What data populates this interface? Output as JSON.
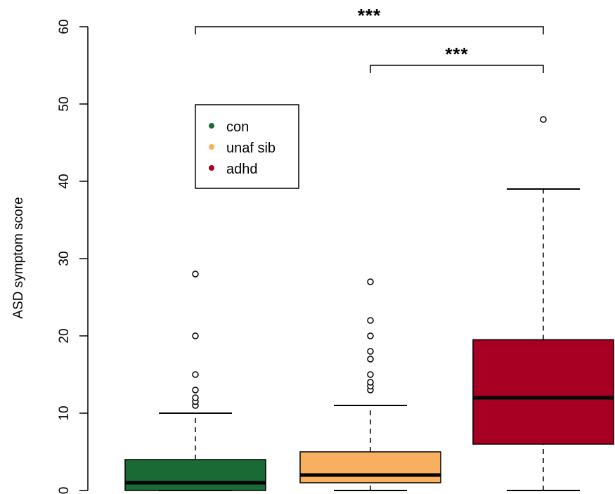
{
  "chart_data": {
    "type": "box",
    "ylabel": "ASD symptom score",
    "ylim": [
      0,
      60
    ],
    "yticks": [
      0,
      10,
      20,
      30,
      40,
      50,
      60
    ],
    "grid": false,
    "legend": {
      "placement": "top-left",
      "entries": [
        {
          "label": "con",
          "color": "#1a6a35"
        },
        {
          "label": "unaf sib",
          "color": "#f8b060"
        },
        {
          "label": "adhd",
          "color": "#a80022"
        }
      ]
    },
    "groups": [
      {
        "name": "con",
        "color": "#1a6a35",
        "whisker_low": 0,
        "q1": 0,
        "median": 1,
        "q3": 4,
        "whisker_high": 10,
        "outliers": [
          11,
          11.5,
          12,
          13,
          15,
          20,
          28
        ]
      },
      {
        "name": "unaf sib",
        "color": "#f8b060",
        "whisker_low": 0,
        "q1": 1,
        "median": 2,
        "q3": 5,
        "whisker_high": 11,
        "outliers": [
          13,
          13.5,
          14,
          15,
          17,
          18,
          20,
          22,
          27
        ]
      },
      {
        "name": "adhd",
        "color": "#a80022",
        "whisker_low": 0,
        "q1": 6,
        "median": 12,
        "q3": 19.5,
        "whisker_high": 39,
        "outliers": [
          48
        ]
      }
    ],
    "significance": [
      {
        "from": 0,
        "to": 2,
        "y": 60,
        "drop": 1,
        "label": "***"
      },
      {
        "from": 1,
        "to": 2,
        "y": 55,
        "drop": 1,
        "label": "***"
      }
    ]
  }
}
